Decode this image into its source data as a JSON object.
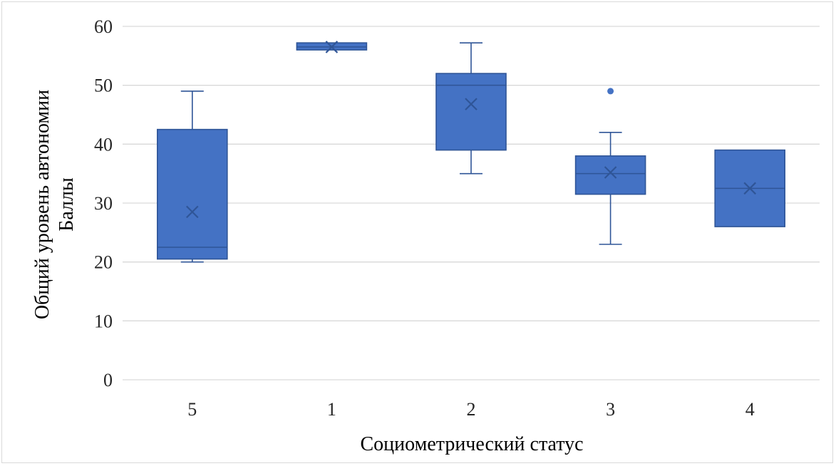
{
  "chart_data": {
    "type": "box",
    "xlabel": "Социометрический статус",
    "ylabel_lines": [
      "Общий уровень автономии",
      "Баллы"
    ],
    "ylim": [
      0,
      60
    ],
    "yticks": [
      0,
      10,
      20,
      30,
      40,
      50,
      60
    ],
    "grid": true,
    "categories": [
      "5",
      "1",
      "2",
      "3",
      "4"
    ],
    "boxes": [
      {
        "category": "5",
        "min": 20,
        "q1": 20.5,
        "median": 22.5,
        "q3": 42.5,
        "max": 49,
        "mean": 28.5,
        "outliers": []
      },
      {
        "category": "1",
        "min": 56,
        "q1": 56,
        "median": 56.5,
        "q3": 57.2,
        "max": 57.2,
        "mean": 56.5,
        "outliers": []
      },
      {
        "category": "2",
        "min": 35,
        "q1": 39,
        "median": 50,
        "q3": 52,
        "max": 57.2,
        "mean": 46.8,
        "outliers": []
      },
      {
        "category": "3",
        "min": 23,
        "q1": 31.5,
        "median": 35,
        "q3": 38,
        "max": 42,
        "mean": 35.2,
        "outliers": [
          49
        ]
      },
      {
        "category": "4",
        "min": 26,
        "q1": 26,
        "median": 32.5,
        "q3": 39,
        "max": 39,
        "mean": 32.5,
        "outliers": []
      }
    ],
    "colors": {
      "box_fill": "#4472c4",
      "box_stroke": "#2f5597",
      "mean_marker": "#2f5597",
      "grid": "#d9d9d9"
    }
  }
}
